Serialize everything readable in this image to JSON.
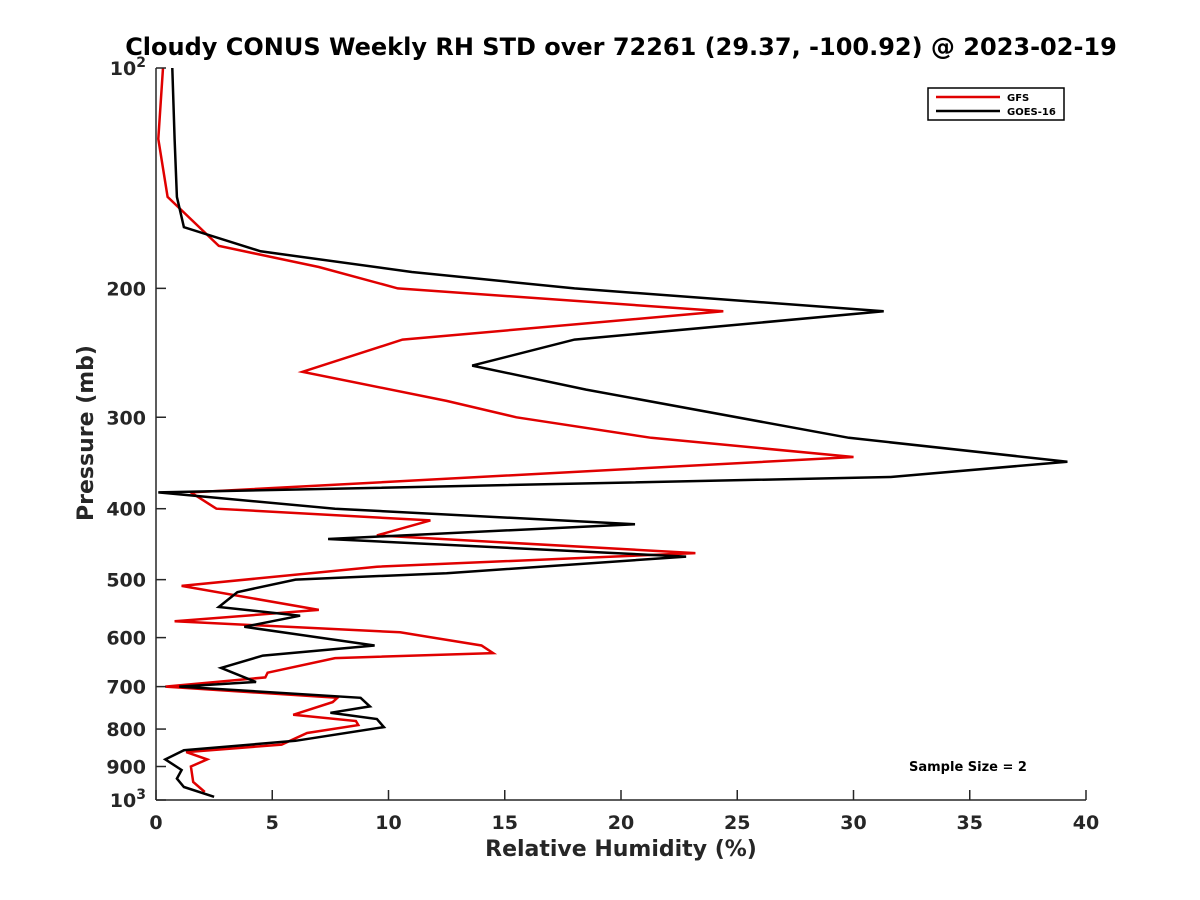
{
  "chart_data": {
    "type": "line",
    "title": "Cloudy CONUS Weekly RH STD over 72261 (29.37, -100.92) @ 2023-02-19",
    "xlabel": "Relative Humidity (%)",
    "ylabel": "Pressure (mb)",
    "xlim": [
      0,
      40
    ],
    "ylim": [
      100,
      1000
    ],
    "yscale": "log",
    "y_reversed": true,
    "grid": false,
    "legend_position": "top-right",
    "x_ticks": [
      "0",
      "5",
      "10",
      "15",
      "20",
      "25",
      "30",
      "35",
      "40"
    ],
    "y_ticks": [
      {
        "value": 100,
        "base": "10",
        "exp": "2"
      },
      {
        "value": 200,
        "label": "200"
      },
      {
        "value": 300,
        "label": "300"
      },
      {
        "value": 400,
        "label": "400"
      },
      {
        "value": 500,
        "label": "500"
      },
      {
        "value": 600,
        "label": "600"
      },
      {
        "value": 700,
        "label": "700"
      },
      {
        "value": 800,
        "label": "800"
      },
      {
        "value": 900,
        "label": "900"
      },
      {
        "value": 1000,
        "base": "10",
        "exp": "3"
      }
    ],
    "annotation": "Sample Size = 2",
    "series": [
      {
        "name": "GFS",
        "color": "#e00000",
        "x": [
          0.3,
          0.1,
          0.5,
          2.7,
          7.0,
          10.4,
          24.4,
          10.6,
          6.3,
          12.5,
          15.5,
          21.3,
          30.0,
          1.5,
          2.6,
          11.8,
          9.5,
          23.2,
          9.5,
          1.1,
          7.0,
          0.8,
          10.5,
          14.0,
          14.5,
          7.7,
          4.8,
          4.7,
          0.4,
          7.8,
          7.6,
          5.9,
          8.6,
          8.7,
          6.5,
          5.4,
          1.3,
          2.2,
          1.5,
          1.6,
          2.1
        ],
        "y": [
          100,
          125,
          150,
          175,
          187,
          200,
          215,
          235,
          260,
          285,
          300,
          320,
          340,
          380,
          400,
          415,
          435,
          460,
          480,
          510,
          550,
          570,
          590,
          615,
          630,
          640,
          670,
          680,
          700,
          725,
          735,
          765,
          780,
          790,
          810,
          840,
          860,
          880,
          900,
          945,
          975
        ]
      },
      {
        "name": "GOES-16",
        "color": "#000000",
        "x": [
          0.7,
          0.8,
          0.9,
          1.2,
          4.5,
          11.0,
          18.0,
          31.3,
          18.0,
          13.6,
          18.5,
          29.8,
          39.2,
          31.6,
          0.1,
          7.7,
          20.6,
          7.4,
          22.8,
          12.5,
          6.0,
          3.5,
          2.7,
          6.2,
          3.8,
          9.4,
          4.6,
          2.8,
          4.3,
          1.0,
          8.8,
          9.2,
          7.5,
          9.5,
          9.8,
          6.0,
          1.2,
          0.4,
          1.1,
          0.9,
          1.2,
          2.5
        ],
        "y": [
          100,
          125,
          150,
          165,
          178,
          190,
          200,
          215,
          235,
          255,
          275,
          320,
          345,
          362,
          380,
          400,
          420,
          440,
          465,
          490,
          500,
          520,
          545,
          560,
          580,
          615,
          635,
          660,
          690,
          700,
          725,
          745,
          760,
          775,
          795,
          830,
          855,
          880,
          910,
          935,
          960,
          990
        ]
      }
    ]
  }
}
